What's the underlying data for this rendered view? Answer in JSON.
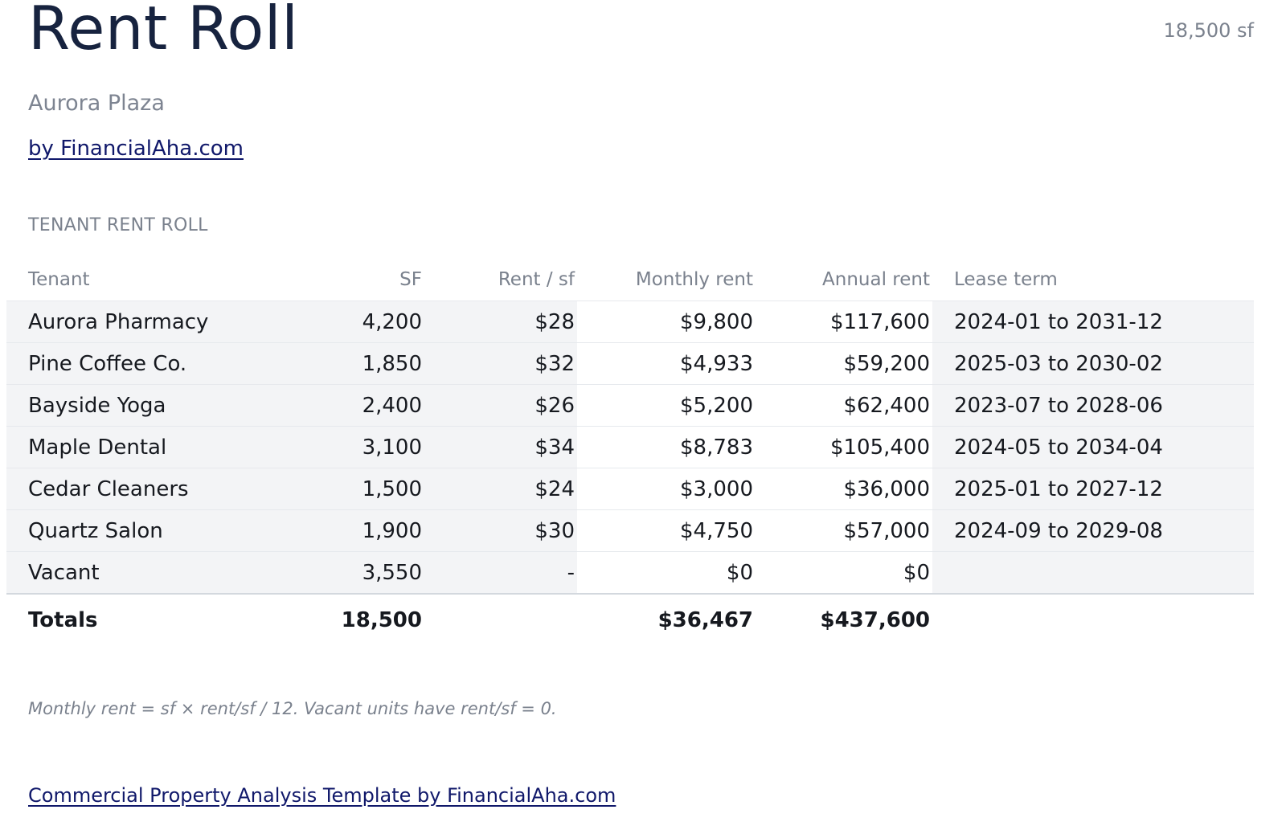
{
  "header": {
    "title": "Rent Roll",
    "total_sf": "18,500 sf",
    "property_name": "Aurora Plaza",
    "byline": "by FinancialAha.com"
  },
  "section": {
    "label": "TENANT RENT ROLL"
  },
  "table": {
    "columns": [
      "Tenant",
      "SF",
      "Rent / sf",
      "Monthly rent",
      "Annual rent",
      "Lease term"
    ],
    "rows": [
      {
        "tenant": "Aurora Pharmacy",
        "sf": "4,200",
        "rate": "$28",
        "monthly": "$9,800",
        "annual": "$117,600",
        "term": "2024-01 to 2031-12"
      },
      {
        "tenant": "Pine Coffee Co.",
        "sf": "1,850",
        "rate": "$32",
        "monthly": "$4,933",
        "annual": "$59,200",
        "term": "2025-03 to 2030-02"
      },
      {
        "tenant": "Bayside Yoga",
        "sf": "2,400",
        "rate": "$26",
        "monthly": "$5,200",
        "annual": "$62,400",
        "term": "2023-07 to 2028-06"
      },
      {
        "tenant": "Maple Dental",
        "sf": "3,100",
        "rate": "$34",
        "monthly": "$8,783",
        "annual": "$105,400",
        "term": "2024-05 to 2034-04"
      },
      {
        "tenant": "Cedar Cleaners",
        "sf": "1,500",
        "rate": "$24",
        "monthly": "$3,000",
        "annual": "$36,000",
        "term": "2025-01 to 2027-12"
      },
      {
        "tenant": "Quartz Salon",
        "sf": "1,900",
        "rate": "$30",
        "monthly": "$4,750",
        "annual": "$57,000",
        "term": "2024-09 to 2029-08"
      },
      {
        "tenant": "Vacant",
        "sf": "3,550",
        "rate": "-",
        "monthly": "$0",
        "annual": "$0",
        "term": ""
      }
    ],
    "totals": {
      "label": "Totals",
      "sf": "18,500",
      "monthly": "$36,467",
      "annual": "$437,600"
    }
  },
  "note": "Monthly rent = sf × rent/sf / 12. Vacant units have rent/sf = 0.",
  "footer": {
    "link_text": "Commercial Property Analysis Template by FinancialAha.com"
  },
  "colors": {
    "title": "#17233f",
    "muted": "#7a818d",
    "link": "#10186a",
    "row_shade": "#f3f4f6"
  }
}
